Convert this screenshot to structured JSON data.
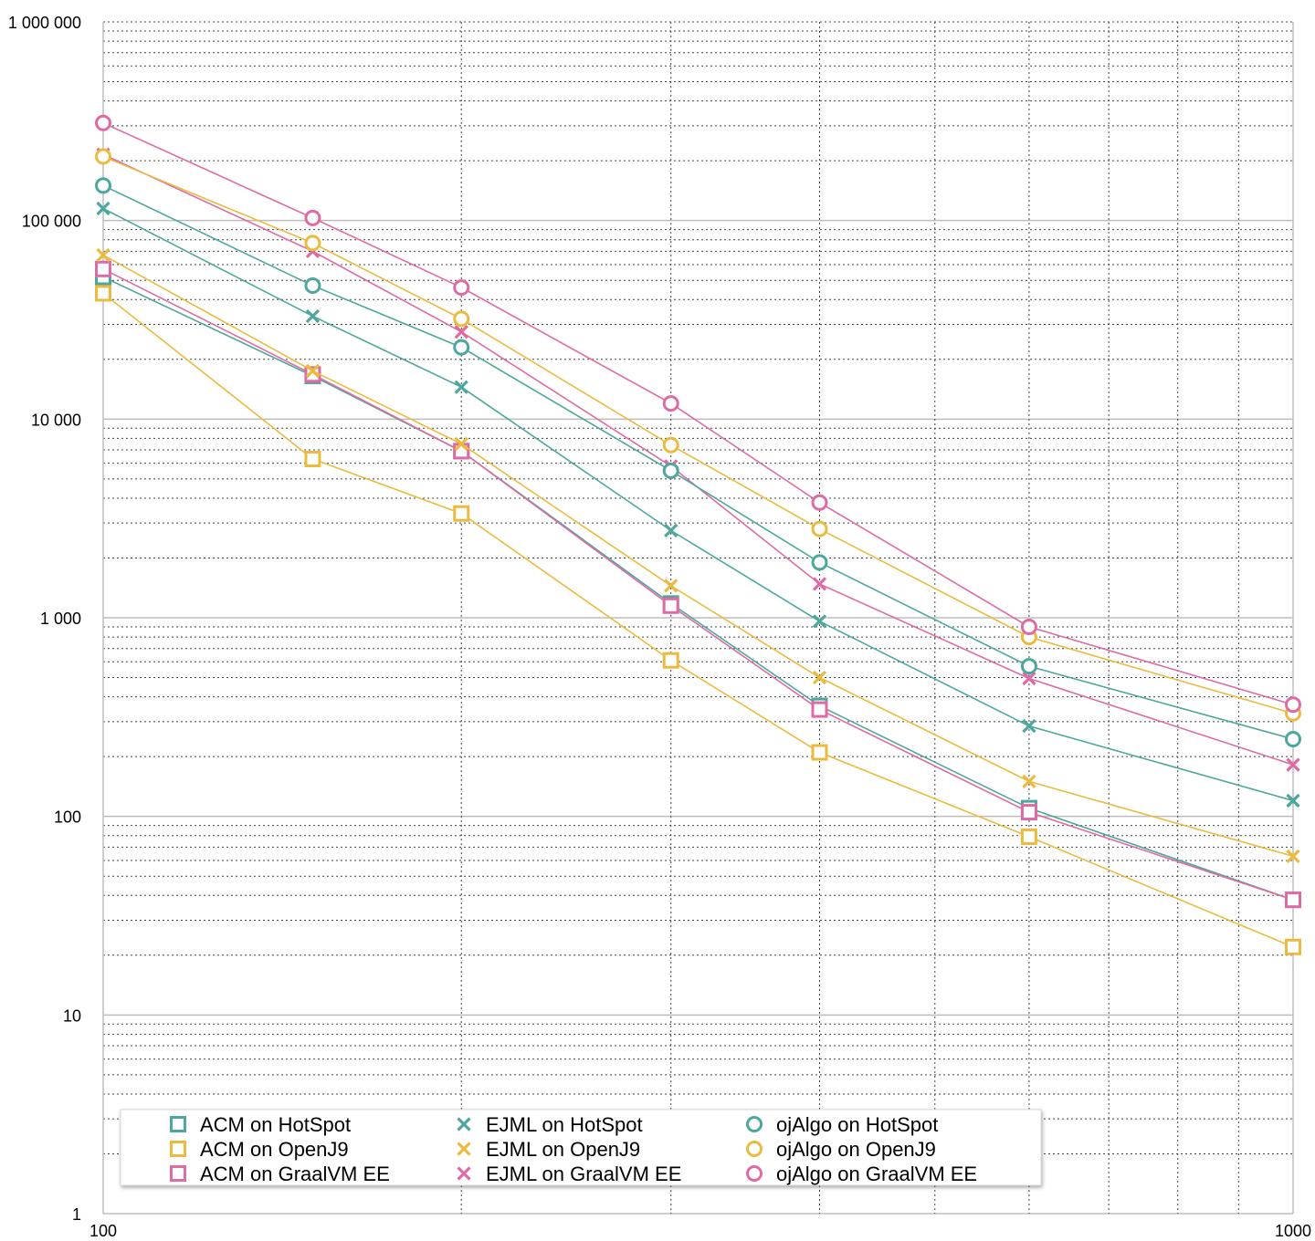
{
  "chart_data": {
    "type": "line",
    "title": "",
    "xlabel": "",
    "ylabel": "",
    "x_scale": "log",
    "y_scale": "log",
    "xlim": [
      100,
      1000
    ],
    "ylim": [
      1,
      1000000
    ],
    "x_ticks": [
      "100",
      "1000"
    ],
    "y_ticks": [
      "1",
      "10",
      "100",
      "1 000",
      "10 000",
      "100 000",
      "1 000 000"
    ],
    "grid": true,
    "legend_position": "bottom-left",
    "x": [
      100,
      150,
      200,
      300,
      400,
      600,
      1000
    ],
    "series": [
      {
        "name": "ACM on HotSpot",
        "color": "#4ea79c",
        "marker": "square",
        "values": [
          52000,
          16500,
          6900,
          1180,
          360,
          110,
          38
        ]
      },
      {
        "name": "ACM on OpenJ9",
        "color": "#ebbb3f",
        "marker": "square",
        "values": [
          43000,
          6300,
          3350,
          610,
          210,
          79,
          22
        ]
      },
      {
        "name": "ACM on GraalVM EE",
        "color": "#df6ba4",
        "marker": "square",
        "values": [
          57000,
          16800,
          6900,
          1150,
          345,
          105,
          38
        ]
      },
      {
        "name": "EJML on HotSpot",
        "color": "#4ea79c",
        "marker": "x",
        "values": [
          115000,
          33000,
          14500,
          2750,
          960,
          285,
          120
        ]
      },
      {
        "name": "EJML on OpenJ9",
        "color": "#ebbb3f",
        "marker": "x",
        "values": [
          67000,
          17500,
          7500,
          1450,
          500,
          150,
          63
        ]
      },
      {
        "name": "EJML on GraalVM EE",
        "color": "#df6ba4",
        "marker": "x",
        "values": [
          215000,
          70000,
          27500,
          5800,
          1480,
          495,
          182
        ]
      },
      {
        "name": "ojAlgo on HotSpot",
        "color": "#4ea79c",
        "marker": "circle",
        "values": [
          150000,
          47000,
          23000,
          5500,
          1900,
          570,
          245
        ]
      },
      {
        "name": "ojAlgo on OpenJ9",
        "color": "#ebbb3f",
        "marker": "circle",
        "values": [
          210000,
          77000,
          32000,
          7400,
          2800,
          800,
          330
        ]
      },
      {
        "name": "ojAlgo on GraalVM EE",
        "color": "#df6ba4",
        "marker": "circle",
        "values": [
          310000,
          103000,
          46000,
          12000,
          3800,
          900,
          365
        ]
      }
    ]
  }
}
